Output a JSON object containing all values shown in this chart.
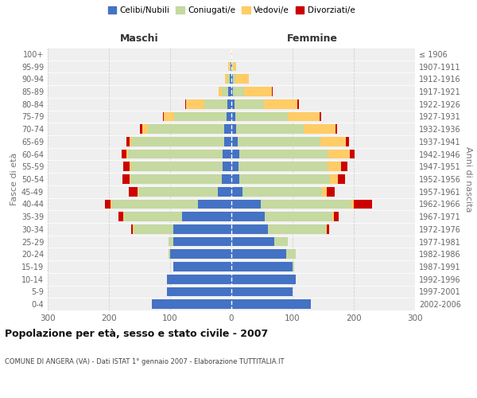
{
  "age_groups": [
    "100+",
    "95-99",
    "90-94",
    "85-89",
    "80-84",
    "75-79",
    "70-74",
    "65-69",
    "60-64",
    "55-59",
    "50-54",
    "45-49",
    "40-44",
    "35-39",
    "30-34",
    "25-29",
    "20-24",
    "15-19",
    "10-14",
    "5-9",
    "0-4"
  ],
  "birth_years": [
    "≤ 1906",
    "1907-1911",
    "1912-1916",
    "1917-1921",
    "1922-1926",
    "1927-1931",
    "1932-1936",
    "1937-1941",
    "1942-1946",
    "1947-1951",
    "1952-1956",
    "1957-1961",
    "1962-1966",
    "1967-1971",
    "1972-1976",
    "1977-1981",
    "1982-1986",
    "1987-1991",
    "1992-1996",
    "1997-2001",
    "2002-2006"
  ],
  "males": {
    "celibi": [
      0,
      1,
      2,
      5,
      6,
      8,
      12,
      12,
      14,
      14,
      15,
      22,
      55,
      80,
      95,
      95,
      100,
      95,
      105,
      105,
      130
    ],
    "coniugati": [
      0,
      2,
      5,
      10,
      38,
      85,
      125,
      150,
      155,
      150,
      150,
      130,
      140,
      95,
      65,
      8,
      3,
      0,
      0,
      0,
      0
    ],
    "vedovi": [
      0,
      2,
      4,
      6,
      30,
      18,
      8,
      4,
      2,
      2,
      1,
      1,
      2,
      1,
      1,
      0,
      0,
      0,
      0,
      0,
      0
    ],
    "divorziati": [
      0,
      0,
      0,
      0,
      1,
      1,
      5,
      5,
      8,
      10,
      12,
      14,
      10,
      9,
      2,
      0,
      0,
      0,
      0,
      0,
      0
    ]
  },
  "females": {
    "nubili": [
      0,
      1,
      2,
      3,
      5,
      7,
      8,
      10,
      13,
      12,
      13,
      18,
      48,
      55,
      60,
      70,
      90,
      100,
      105,
      100,
      130
    ],
    "coniugate": [
      0,
      2,
      5,
      18,
      48,
      85,
      110,
      135,
      145,
      145,
      148,
      130,
      148,
      110,
      95,
      22,
      15,
      3,
      0,
      0,
      0
    ],
    "vedove": [
      1,
      5,
      22,
      45,
      55,
      52,
      52,
      42,
      35,
      22,
      13,
      8,
      4,
      2,
      1,
      0,
      0,
      0,
      0,
      0,
      0
    ],
    "divorziate": [
      0,
      0,
      0,
      1,
      2,
      3,
      3,
      5,
      8,
      10,
      12,
      13,
      30,
      8,
      4,
      0,
      0,
      0,
      0,
      0,
      0
    ]
  },
  "colors": {
    "celibi": "#4472C4",
    "coniugati": "#C5D9A0",
    "vedovi": "#FFCC66",
    "divorziati": "#CC0000"
  },
  "title": "Popolazione per età, sesso e stato civile - 2007",
  "subtitle": "COMUNE DI ANGERA (VA) - Dati ISTAT 1° gennaio 2007 - Elaborazione TUTTITALIA.IT",
  "ylabel_left": "Fasce di età",
  "ylabel_right": "Anni di nascita",
  "xlabel_left": "Maschi",
  "xlabel_right": "Femmine",
  "xlim": 300,
  "bg_color": "#FFFFFF",
  "plot_bg": "#EFEFEF",
  "grid_color": "#CCCCCC",
  "legend_labels": [
    "Celibi/Nubili",
    "Coniugati/e",
    "Vedovi/e",
    "Divorziati/e"
  ]
}
